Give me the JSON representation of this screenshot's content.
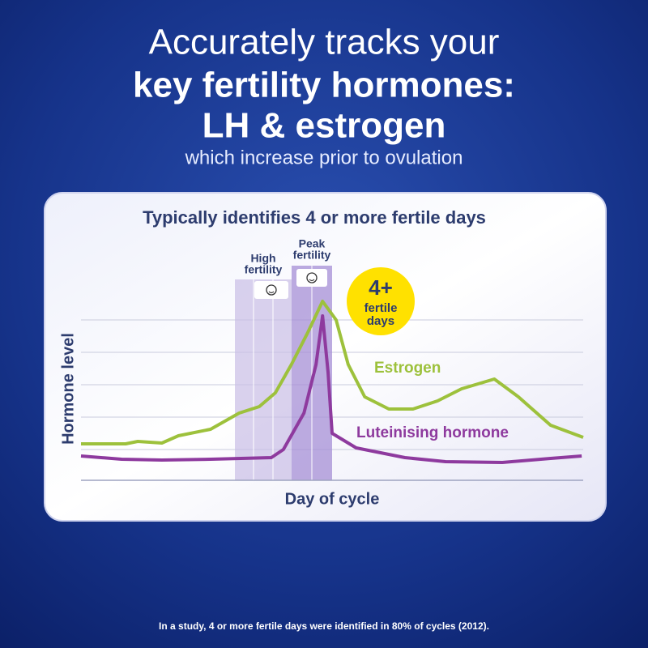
{
  "header": {
    "lines": [
      "Accurately tracks your",
      "key fertility hormones:",
      "LH & estrogen"
    ],
    "subtitle": "which increase prior to ovulation"
  },
  "chart_data": {
    "type": "line",
    "title": "Typically identifies 4 or more fertile days",
    "y_label": "Hormone level",
    "x_label": "Day of cycle",
    "xlim": [
      0,
      100
    ],
    "ylim": [
      0,
      23
    ],
    "bands": [
      {
        "label": [
          "High",
          "fertility"
        ]
      },
      {
        "label": [
          "Peak",
          "fertility"
        ]
      }
    ],
    "badge": {
      "big": "4+",
      "lines": [
        "fertile",
        "days"
      ]
    },
    "series": [
      {
        "name": "Estrogen",
        "color": "#9dc13c",
        "x": [
          0,
          8.9,
          11.3,
          16.1,
          19.4,
          25.8,
          31.5,
          35.5,
          38.7,
          41.9,
          45.2,
          48.1,
          50.8,
          53.2,
          56.5,
          61.3,
          66.1,
          71,
          75.8,
          82.3,
          87.1,
          93.5,
          100
        ],
        "values": [
          4.5,
          4.5,
          4.8,
          4.6,
          5.5,
          6.3,
          8.3,
          9.1,
          10.8,
          14.3,
          18.3,
          22.1,
          19.8,
          14.3,
          10.3,
          8.8,
          8.8,
          9.8,
          11.3,
          12.5,
          10.3,
          6.8,
          5.3
        ]
      },
      {
        "name": "Luteinising hormone",
        "color": "#8e3a9e",
        "x": [
          0,
          8.1,
          16.1,
          25.8,
          37.9,
          40.3,
          44.4,
          46.8,
          48.1,
          49.2,
          50,
          54.8,
          64.5,
          72.6,
          83.9,
          93.5,
          99.7
        ],
        "values": [
          3,
          2.6,
          2.5,
          2.6,
          2.8,
          3.8,
          8.3,
          14.3,
          20.3,
          13.3,
          5.8,
          4,
          2.8,
          2.3,
          2.2,
          2.7,
          3
        ]
      }
    ]
  },
  "footnote": "In a study, 4 or more fertile days were identified in 80% of cycles (2012)."
}
